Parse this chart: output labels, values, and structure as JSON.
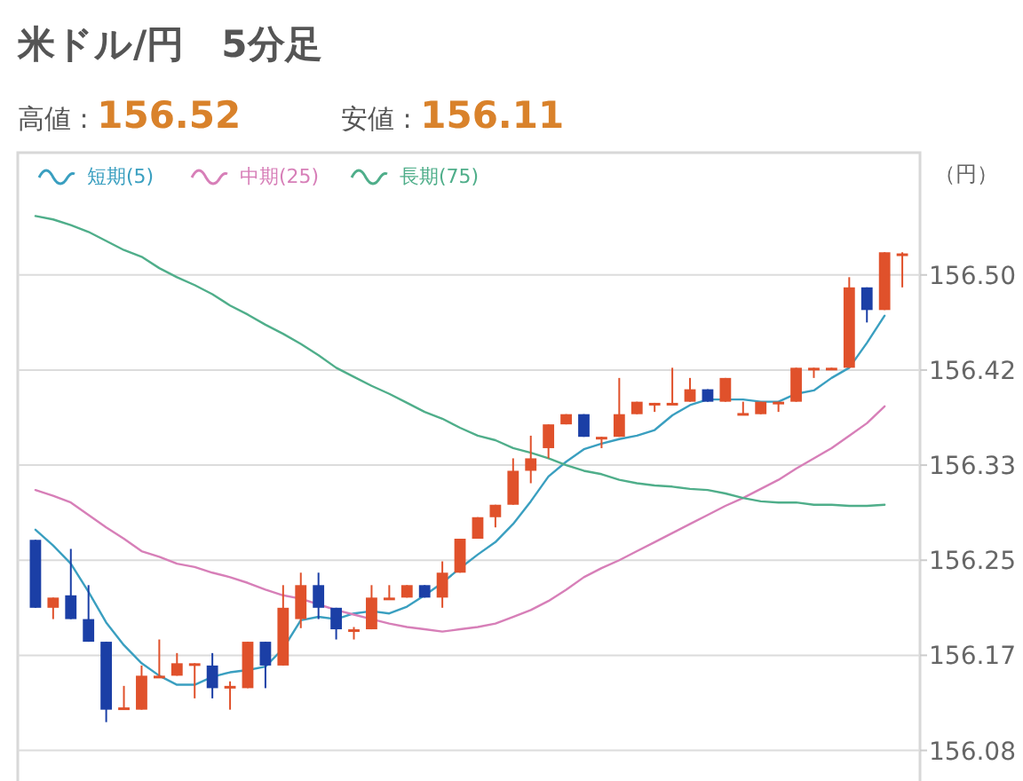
{
  "chart_data": {
    "type": "candlestick",
    "title": "米ドル/円　5分足",
    "ylabel": "（円）",
    "annotations": [
      "高値 : 156.52",
      "安値 : 156.11"
    ],
    "categories": [
      null,
      null,
      null,
      null,
      null,
      null,
      null,
      null,
      null,
      null,
      null,
      null,
      null,
      null,
      null,
      null,
      null,
      null,
      null,
      null,
      null,
      null,
      null,
      null,
      null,
      null,
      null,
      null,
      null,
      null,
      null,
      null,
      null,
      null,
      null,
      null,
      null,
      null,
      null,
      null,
      null,
      null,
      null,
      null,
      null,
      null,
      null,
      null,
      null,
      null
    ],
    "ohlc": [
      [
        156.268,
        156.268,
        156.208,
        156.208
      ],
      [
        156.208,
        156.217,
        156.198,
        156.217
      ],
      [
        156.219,
        156.26,
        156.198,
        156.198
      ],
      [
        156.198,
        156.228,
        156.178,
        156.178
      ],
      [
        156.178,
        156.178,
        156.107,
        156.118
      ],
      [
        156.118,
        156.139,
        156.118,
        156.12
      ],
      [
        156.118,
        156.157,
        156.118,
        156.148
      ],
      [
        156.147,
        156.18,
        156.147,
        156.148
      ],
      [
        156.148,
        156.168,
        156.148,
        156.159
      ],
      [
        156.157,
        156.159,
        156.128,
        156.159
      ],
      [
        156.157,
        156.168,
        156.128,
        156.137
      ],
      [
        156.137,
        156.143,
        156.118,
        156.139
      ],
      [
        156.137,
        156.178,
        156.137,
        156.178
      ],
      [
        156.178,
        156.178,
        156.137,
        156.157
      ],
      [
        156.157,
        156.228,
        156.157,
        156.208
      ],
      [
        156.198,
        156.239,
        156.19,
        156.228
      ],
      [
        156.228,
        156.239,
        156.198,
        156.208
      ],
      [
        156.208,
        156.208,
        156.18,
        156.189
      ],
      [
        156.188,
        156.191,
        156.18,
        156.189
      ],
      [
        156.189,
        156.228,
        156.189,
        156.217
      ],
      [
        156.216,
        156.228,
        156.216,
        156.217
      ],
      [
        156.217,
        156.228,
        156.217,
        156.228
      ],
      [
        156.228,
        156.228,
        156.217,
        156.217
      ],
      [
        156.217,
        156.249,
        156.208,
        156.239
      ],
      [
        156.239,
        156.269,
        156.239,
        156.269
      ],
      [
        156.269,
        156.288,
        156.269,
        156.288
      ],
      [
        156.288,
        156.299,
        156.279,
        156.299
      ],
      [
        156.299,
        156.34,
        156.299,
        156.329
      ],
      [
        156.329,
        156.36,
        156.318,
        156.34
      ],
      [
        156.349,
        156.37,
        156.34,
        156.37
      ],
      [
        156.37,
        156.379,
        156.37,
        156.379
      ],
      [
        156.379,
        156.379,
        156.359,
        156.359
      ],
      [
        156.358,
        156.359,
        156.349,
        156.359
      ],
      [
        156.359,
        156.411,
        156.359,
        156.379
      ],
      [
        156.379,
        156.39,
        156.379,
        156.39
      ],
      [
        156.388,
        156.389,
        156.381,
        156.389
      ],
      [
        156.388,
        156.42,
        156.388,
        156.389
      ],
      [
        156.39,
        156.411,
        156.39,
        156.401
      ],
      [
        156.401,
        156.401,
        156.39,
        156.39
      ],
      [
        156.39,
        156.411,
        156.39,
        156.411
      ],
      [
        156.379,
        156.39,
        156.379,
        156.38
      ],
      [
        156.379,
        156.39,
        156.379,
        156.39
      ],
      [
        156.389,
        156.39,
        156.381,
        156.39
      ],
      [
        156.39,
        156.42,
        156.39,
        156.42
      ],
      [
        156.419,
        156.42,
        156.411,
        156.42
      ],
      [
        156.419,
        156.42,
        156.419,
        156.42
      ],
      [
        156.42,
        156.5,
        156.42,
        156.491
      ],
      [
        156.491,
        156.491,
        156.46,
        156.471
      ],
      [
        156.471,
        156.522,
        156.471,
        156.522
      ],
      [
        156.52,
        156.522,
        156.491,
        156.521
      ]
    ],
    "colors": [
      "#1b3fa6",
      "#e0512b",
      "#1b3fa6",
      "#1b3fa6",
      "#1b3fa6",
      "#e0512b",
      "#e0512b",
      "#e0512b",
      "#e0512b",
      "#e0512b",
      "#1b3fa6",
      "#e0512b",
      "#e0512b",
      "#1b3fa6",
      "#e0512b",
      "#e0512b",
      "#1b3fa6",
      "#1b3fa6",
      "#e0512b",
      "#e0512b",
      "#e0512b",
      "#e0512b",
      "#1b3fa6",
      "#e0512b",
      "#e0512b",
      "#e0512b",
      "#e0512b",
      "#e0512b",
      "#e0512b",
      "#e0512b",
      "#e0512b",
      "#1b3fa6",
      "#e0512b",
      "#e0512b",
      "#e0512b",
      "#e0512b",
      "#e0512b",
      "#e0512b",
      "#1b3fa6",
      "#e0512b",
      "#e0512b",
      "#e0512b",
      "#e0512b",
      "#e0512b",
      "#e0512b",
      "#e0512b",
      "#e0512b",
      "#1b3fa6",
      "#e0512b",
      "#e0512b"
    ],
    "series": [
      {
        "name": "短期(5)",
        "type": "line",
        "color": "#3a9fc0",
        "values": [
          156.277,
          156.263,
          156.247,
          156.222,
          156.195,
          156.175,
          156.159,
          156.148,
          156.14,
          156.14,
          156.147,
          156.151,
          156.153,
          156.156,
          156.172,
          156.197,
          156.2,
          156.198,
          156.203,
          156.205,
          156.203,
          156.209,
          156.219,
          156.23,
          156.243,
          156.255,
          156.266,
          156.282,
          156.302,
          156.324,
          156.337,
          156.348,
          156.353,
          156.357,
          156.36,
          156.365,
          156.378,
          156.387,
          156.392,
          156.392,
          156.392,
          156.39,
          156.39,
          156.397,
          156.4,
          156.411,
          156.42,
          156.442,
          156.466,
          null
        ]
      },
      {
        "name": "中期(25)",
        "type": "line",
        "color": "#d77fb8",
        "values": [
          156.312,
          156.307,
          156.301,
          156.29,
          156.279,
          156.269,
          156.258,
          156.253,
          156.247,
          156.244,
          156.239,
          156.235,
          156.23,
          156.224,
          156.219,
          156.216,
          156.211,
          156.206,
          156.202,
          156.198,
          156.194,
          156.191,
          156.189,
          156.187,
          156.189,
          156.191,
          156.194,
          156.2,
          156.206,
          156.214,
          156.224,
          156.235,
          156.243,
          156.25,
          156.258,
          156.266,
          156.274,
          156.282,
          156.29,
          156.298,
          156.305,
          156.313,
          156.321,
          156.331,
          156.34,
          156.349,
          156.36,
          156.371,
          156.386,
          null
        ]
      },
      {
        "name": "長期(75)",
        "type": "line",
        "color": "#4fae8a",
        "values": [
          156.554,
          156.551,
          156.546,
          156.54,
          156.532,
          156.524,
          156.518,
          156.508,
          156.5,
          156.493,
          156.485,
          156.475,
          156.467,
          156.458,
          156.45,
          156.441,
          156.431,
          156.42,
          156.412,
          156.404,
          156.397,
          156.389,
          156.381,
          156.375,
          156.367,
          156.36,
          156.356,
          156.349,
          156.345,
          156.34,
          156.334,
          156.329,
          156.326,
          156.321,
          156.318,
          156.316,
          156.315,
          156.313,
          156.312,
          156.309,
          156.305,
          156.302,
          156.301,
          156.301,
          156.299,
          156.299,
          156.298,
          156.298,
          156.299,
          null
        ]
      }
    ],
    "ylim": [
      156.055,
      156.61
    ],
    "yticks": [
      {
        "value": 156.082,
        "label": "156.08"
      },
      {
        "value": 156.166,
        "label": "156.17"
      },
      156.25,
      {
        "value": 156.334,
        "label": "156.33"
      },
      {
        "value": 156.418,
        "label": "156.42"
      },
      {
        "value": 156.502,
        "label": "156.50"
      }
    ],
    "grid": "y",
    "legend": "top left"
  }
}
